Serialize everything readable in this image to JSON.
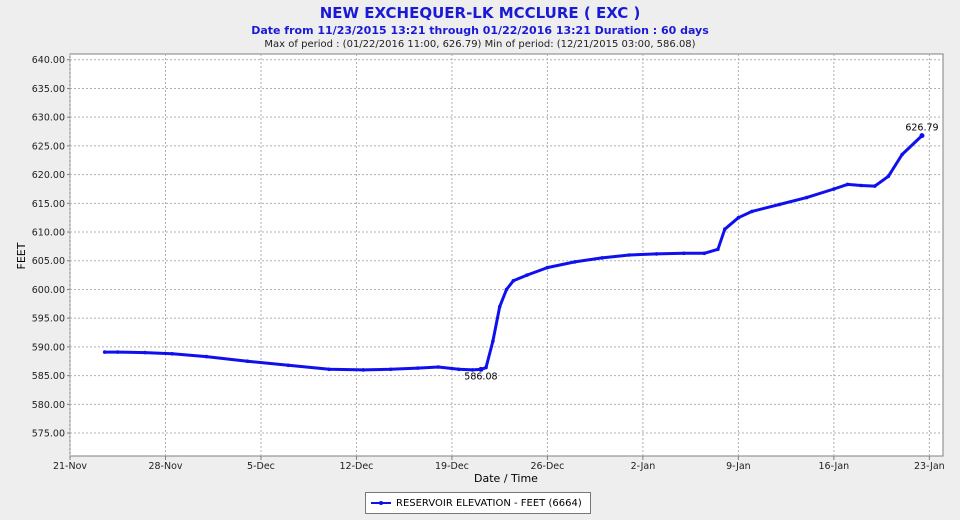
{
  "header": {
    "title": "NEW EXCHEQUER-LK MCCLURE ( EXC )",
    "subtitle": "Date from 11/23/2015 13:21 through 01/22/2016 13:21 Duration : 60 days",
    "stats": "Max of period : (01/22/2016 11:00, 626.79)  Min of period: (12/21/2015 03:00,  586.08)"
  },
  "chart_data": {
    "type": "line",
    "title": "NEW EXCHEQUER-LK MCCLURE ( EXC )",
    "xlabel": "Date / Time",
    "ylabel": "FEET",
    "ylim": [
      571,
      641
    ],
    "xlim": [
      "2015-11-21",
      "2016-01-24"
    ],
    "grid": true,
    "legend_position": "bottom-center",
    "yticks": [
      "575.00",
      "580.00",
      "585.00",
      "590.00",
      "595.00",
      "600.00",
      "605.00",
      "610.00",
      "615.00",
      "620.00",
      "625.00",
      "630.00",
      "635.00",
      "640.00"
    ],
    "xticks": [
      {
        "date": "2015-11-21",
        "label": "21-Nov"
      },
      {
        "date": "2015-11-28",
        "label": "28-Nov"
      },
      {
        "date": "2015-12-05",
        "label": "5-Dec"
      },
      {
        "date": "2015-12-12",
        "label": "12-Dec"
      },
      {
        "date": "2015-12-19",
        "label": "19-Dec"
      },
      {
        "date": "2015-12-26",
        "label": "26-Dec"
      },
      {
        "date": "2016-01-02",
        "label": "2-Jan"
      },
      {
        "date": "2016-01-09",
        "label": "9-Jan"
      },
      {
        "date": "2016-01-16",
        "label": "16-Jan"
      },
      {
        "date": "2016-01-23",
        "label": "23-Jan"
      }
    ],
    "series": [
      {
        "name": "RESERVOIR ELEVATION - FEET (6664)",
        "color": "#1010ee",
        "x": [
          "2015-11-23T13:00",
          "2015-11-24T12:00",
          "2015-11-26T12:00",
          "2015-11-28T12:00",
          "2015-12-01T00:00",
          "2015-12-04T00:00",
          "2015-12-07T00:00",
          "2015-12-10T00:00",
          "2015-12-12T12:00",
          "2015-12-14T12:00",
          "2015-12-16T12:00",
          "2015-12-18T00:00",
          "2015-12-19T12:00",
          "2015-12-20T12:00",
          "2015-12-21T03:00",
          "2015-12-21T12:00",
          "2015-12-22T00:00",
          "2015-12-22T12:00",
          "2015-12-23T00:00",
          "2015-12-23T12:00",
          "2015-12-24T12:00",
          "2015-12-26T00:00",
          "2015-12-28T00:00",
          "2015-12-30T00:00",
          "2016-01-01T00:00",
          "2016-01-03T00:00",
          "2016-01-05T00:00",
          "2016-01-06T12:00",
          "2016-01-07T12:00",
          "2016-01-08T00:00",
          "2016-01-09T00:00",
          "2016-01-10T00:00",
          "2016-01-12T00:00",
          "2016-01-14T00:00",
          "2016-01-16T00:00",
          "2016-01-17T00:00",
          "2016-01-18T00:00",
          "2016-01-19T00:00",
          "2016-01-20T00:00",
          "2016-01-21T00:00",
          "2016-01-22T11:00"
        ],
        "y": [
          589.1,
          589.1,
          589.0,
          588.8,
          588.3,
          587.5,
          586.8,
          586.1,
          586.0,
          586.1,
          586.3,
          586.5,
          586.1,
          586.0,
          586.08,
          586.4,
          591.0,
          597.0,
          600.0,
          601.5,
          602.5,
          603.8,
          604.8,
          605.5,
          606.0,
          606.2,
          606.3,
          606.3,
          607.0,
          610.5,
          612.5,
          613.6,
          614.8,
          616.0,
          617.5,
          618.3,
          618.1,
          618.0,
          619.7,
          623.5,
          626.79
        ]
      }
    ],
    "annotations": [
      {
        "date": "2015-12-21T03:00",
        "value": 586.08,
        "label": "586.08"
      },
      {
        "date": "2016-01-22T11:00",
        "value": 626.79,
        "label": "626.79"
      }
    ]
  },
  "legend": {
    "label": "RESERVOIR ELEVATION - FEET (6664)"
  }
}
